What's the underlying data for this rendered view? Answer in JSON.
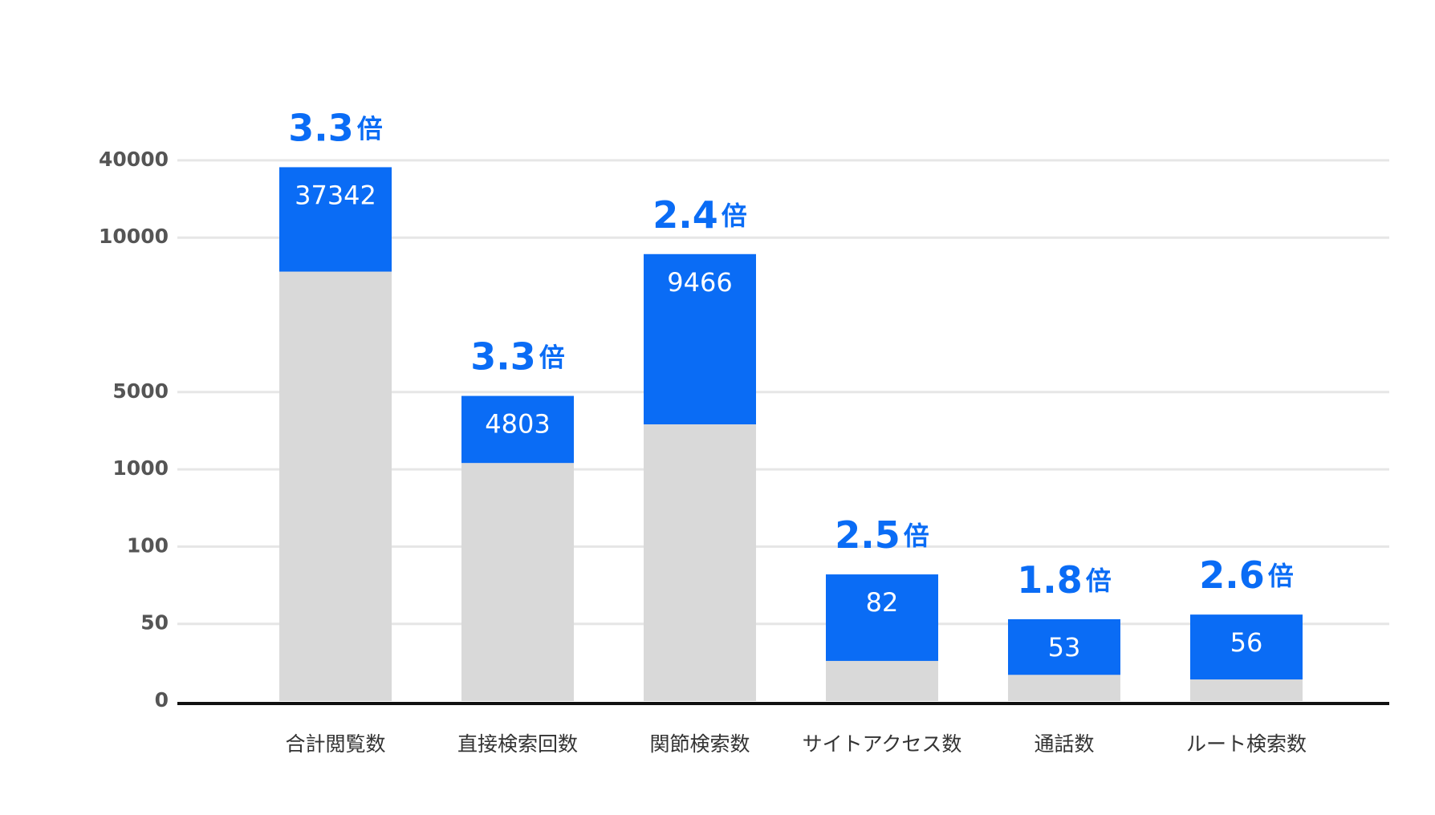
{
  "chart_data": {
    "type": "bar",
    "categories": [
      "合計閲覧数",
      "直接検索回数",
      "関節検索数",
      "サイトアクセス数",
      "通話数",
      "ルート検索数"
    ],
    "series": [
      {
        "color": "#0a6cf5",
        "values": [
          37342,
          4803,
          9466,
          82,
          53,
          56
        ]
      },
      {
        "color": "#d9d9d9",
        "values": [
          8900,
          1330,
          3330,
          26,
          17,
          14
        ]
      }
    ],
    "value_series": 0,
    "annotations": [
      "3.3倍",
      "3.3倍",
      "2.4倍",
      "2.5倍",
      "1.8倍",
      "2.6倍"
    ],
    "ylim": [
      0,
      40000
    ],
    "yticks": [
      0,
      50,
      100,
      1000,
      5000,
      10000,
      40000
    ],
    "grid": true
  }
}
